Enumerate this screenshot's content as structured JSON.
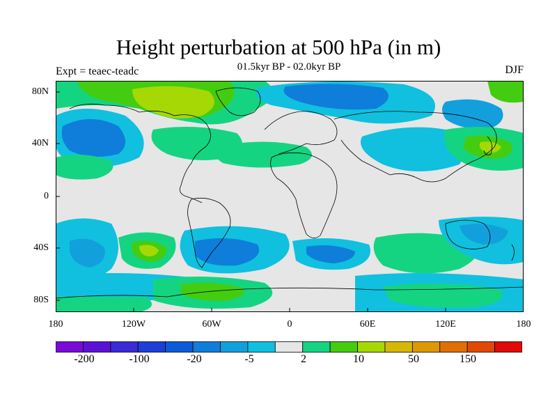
{
  "title": "Height perturbation at 500 hPa (in m)",
  "subtitle": "01.5kyr BP - 02.0kyr BP",
  "left_label": "Expt = teaec-teadc",
  "right_label": "DJF",
  "lat_ticks": [
    "80N",
    "40N",
    "0",
    "40S",
    "80S"
  ],
  "lon_ticks": [
    "180",
    "120W",
    "60W",
    "0",
    "60E",
    "120E",
    "180"
  ],
  "colorbar": {
    "labels": [
      "-200",
      "-100",
      "-20",
      "-5",
      "2",
      "10",
      "50",
      "150"
    ],
    "colors": [
      "#7a0ad8",
      "#5c12d6",
      "#3b2ad6",
      "#1d3ed8",
      "#0b5ad8",
      "#0f7dda",
      "#12a0dc",
      "#10c0de",
      "#e6e6e6",
      "#14d482",
      "#44cc10",
      "#a6d806",
      "#d6b804",
      "#de9804",
      "#e07004",
      "#e04a06",
      "#e00a06"
    ]
  },
  "map_colors": {
    "neutral": "#e6e6e6",
    "light_blue": "#10c0de",
    "mid_blue": "#12a0dc",
    "blue": "#0f7dda",
    "teal": "#14d482",
    "green": "#44cc10",
    "yellow_green": "#a6d806",
    "yellow": "#d6b804",
    "coast": "#000000"
  }
}
